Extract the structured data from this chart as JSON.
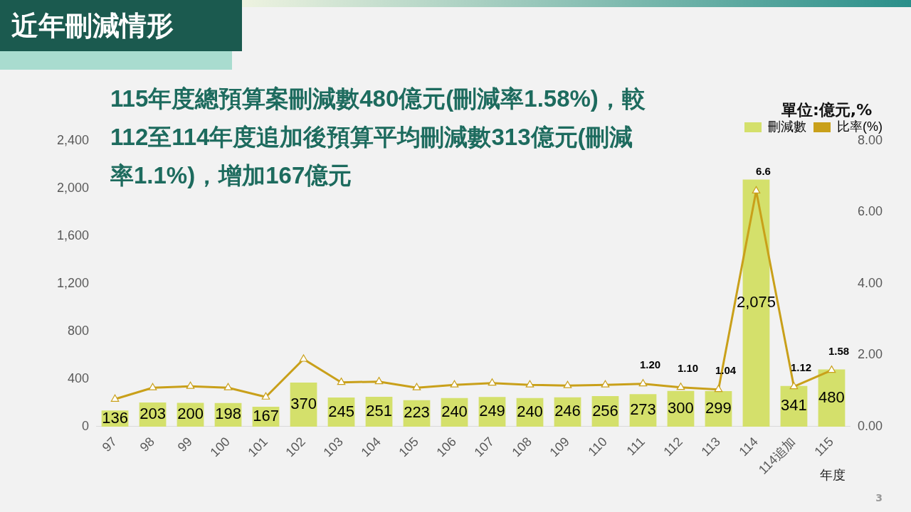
{
  "chart_data": {
    "type": "bar",
    "title": "近年刪減情形",
    "subtitle": "115年度總預算案刪減數480億元(刪減率1.58%)，較112至114年度追加後預算平均刪減數313億元(刪減率1.1%)，增加167億元",
    "xlabel": "年度",
    "annotations": [
      "單位:億元,%",
      "3"
    ],
    "categories": [
      "97",
      "98",
      "99",
      "100",
      "101",
      "102",
      "103",
      "104",
      "105",
      "106",
      "107",
      "108",
      "109",
      "110",
      "111",
      "112",
      "113",
      "114",
      "114追加",
      "115"
    ],
    "series": [
      {
        "name": "刪減數",
        "color": "#d4e06b",
        "values": [
          136,
          203,
          200,
          198,
          167,
          370,
          245,
          251,
          223,
          240,
          249,
          240,
          246,
          256,
          273,
          300,
          299,
          2075,
          341,
          480
        ],
        "value_labels": [
          "136",
          "203",
          "200",
          "198",
          "167",
          "370",
          "245",
          "251",
          "223",
          "240",
          "249",
          "240",
          "246",
          "256",
          "273",
          "300",
          "299",
          "2,075",
          "341",
          "480"
        ]
      },
      {
        "name": "比率(%)",
        "type": "line",
        "axis": "y2",
        "color": "#c9a01a",
        "marker": "triangle",
        "values": [
          0.77,
          1.09,
          1.13,
          1.09,
          0.83,
          1.89,
          1.24,
          1.26,
          1.09,
          1.17,
          1.22,
          1.17,
          1.15,
          1.17,
          1.2,
          1.1,
          1.04,
          6.6,
          1.12,
          1.58
        ],
        "value_labels": [
          null,
          null,
          null,
          null,
          null,
          null,
          null,
          null,
          null,
          null,
          null,
          null,
          null,
          null,
          "1.20",
          "1.10",
          "1.04",
          "6.6",
          "1.12",
          "1.58"
        ]
      }
    ],
    "ylim": [
      0,
      2400
    ],
    "yticks": [
      0,
      400,
      800,
      {
        "value": 1200,
        "label": "1,200"
      },
      {
        "value": 1600,
        "label": "1,600"
      },
      {
        "value": 2000,
        "label": "2,000"
      },
      {
        "value": 2400,
        "label": "2,400"
      }
    ],
    "y2lim": [
      0,
      8
    ],
    "y2ticks": [
      {
        "value": 0,
        "label": "0.00"
      },
      {
        "value": 2,
        "label": "2.00"
      },
      {
        "value": 4,
        "label": "4.00"
      },
      {
        "value": 6,
        "label": "6.00"
      },
      {
        "value": 8,
        "label": "8.00"
      }
    ],
    "legend": "top right",
    "grid": false
  }
}
